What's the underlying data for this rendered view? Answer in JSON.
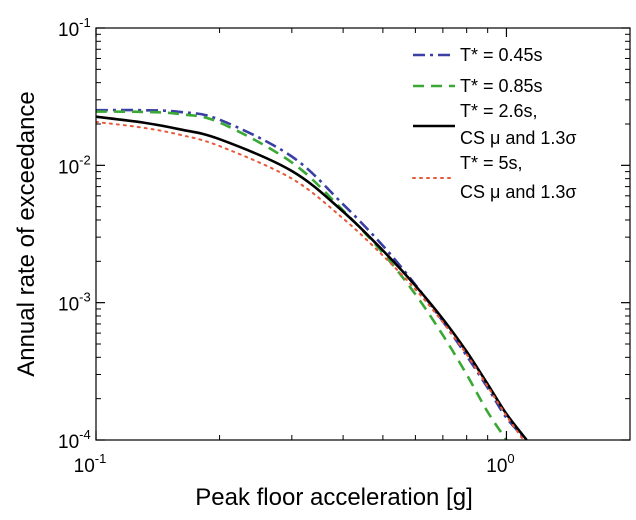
{
  "chart_data": {
    "type": "line",
    "title": "",
    "xlabel": "Peak floor acceleration [g]",
    "ylabel": "Annual rate of exceedance",
    "x_scale": "log",
    "y_scale": "log",
    "xlim": [
      0.1,
      2.0
    ],
    "ylim": [
      0.0001,
      0.1
    ],
    "grid": false,
    "legend_position": "top-right",
    "x_ticks": [
      {
        "value": 0.1,
        "base": "10",
        "exp": "-1"
      },
      {
        "value": 1.0,
        "base": "10",
        "exp": "0"
      }
    ],
    "y_ticks": [
      {
        "value": 0.1,
        "base": "10",
        "exp": "-1"
      },
      {
        "value": 0.01,
        "base": "10",
        "exp": "-2"
      },
      {
        "value": 0.001,
        "base": "10",
        "exp": "-3"
      },
      {
        "value": 0.0001,
        "base": "10",
        "exp": "-4"
      }
    ],
    "series": [
      {
        "name": "T* = 0.45s",
        "color": "#3a3fa3",
        "dash": "dashdot",
        "x": [
          0.1,
          0.13,
          0.16,
          0.2,
          0.3,
          0.4,
          0.5,
          0.6,
          0.7,
          0.8,
          0.9,
          1.0,
          1.12
        ],
        "y": [
          0.0252,
          0.0252,
          0.0245,
          0.0215,
          0.0116,
          0.0052,
          0.0026,
          0.00135,
          0.00073,
          0.00041,
          0.00024,
          0.000145,
          0.0001
        ]
      },
      {
        "name": "T* = 0.85s",
        "color": "#3aa835",
        "dash": "dash",
        "x": [
          0.1,
          0.13,
          0.16,
          0.2,
          0.3,
          0.4,
          0.5,
          0.6,
          0.7,
          0.8,
          0.9,
          1.0
        ],
        "y": [
          0.0246,
          0.0245,
          0.0236,
          0.0205,
          0.0105,
          0.0047,
          0.0023,
          0.00115,
          0.00058,
          0.0003,
          0.00016,
          0.0001
        ]
      },
      {
        "name": "T* = 2.6s, CS μ and 1.3σ",
        "color": "#000000",
        "dash": "solid",
        "x": [
          0.1,
          0.13,
          0.16,
          0.2,
          0.3,
          0.4,
          0.5,
          0.6,
          0.7,
          0.8,
          0.9,
          1.0,
          1.12
        ],
        "y": [
          0.0226,
          0.0205,
          0.0183,
          0.0155,
          0.0091,
          0.0046,
          0.0024,
          0.00133,
          0.00076,
          0.00044,
          0.000255,
          0.000155,
          0.0001
        ]
      },
      {
        "name": "T* = 5s, CS μ and 1.3σ",
        "color": "#e8583a",
        "dash": "dot",
        "x": [
          0.1,
          0.13,
          0.16,
          0.2,
          0.3,
          0.4,
          0.5,
          0.6,
          0.7,
          0.8,
          0.9,
          1.0,
          1.1
        ],
        "y": [
          0.0207,
          0.0188,
          0.0167,
          0.0138,
          0.008,
          0.0041,
          0.0022,
          0.00125,
          0.00072,
          0.00042,
          0.000245,
          0.00015,
          0.0001
        ]
      }
    ],
    "legend": [
      {
        "lines": [
          "T* = 0.45s"
        ]
      },
      {
        "lines": [
          "T* = 0.85s"
        ]
      },
      {
        "lines": [
          "T* = 2.6s,",
          "CS μ and 1.3σ"
        ]
      },
      {
        "lines": [
          "T* = 5s,",
          "CS μ and 1.3σ"
        ]
      }
    ]
  }
}
